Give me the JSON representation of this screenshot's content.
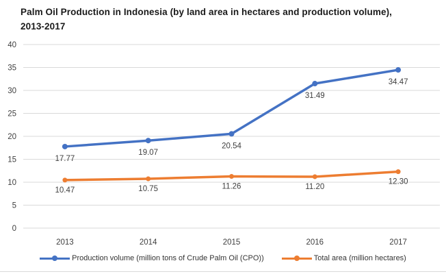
{
  "title": {
    "line1": "Palm Oil Production in Indonesia (by land area in hectares and production volume),",
    "line2": "2013-2017"
  },
  "chart_data": {
    "type": "line",
    "title": "Palm Oil Production in Indonesia (by land area in hectares and production volume), 2013-2017",
    "categories": [
      "2013",
      "2014",
      "2015",
      "2016",
      "2017"
    ],
    "series": [
      {
        "name": "Production volume (million tons of Crude Palm Oil (CPO))",
        "values": [
          17.77,
          19.07,
          20.54,
          31.49,
          34.47
        ],
        "labels": [
          "17.77",
          "19.07",
          "20.54",
          "31.49",
          "34.47"
        ],
        "color": "#4472C4"
      },
      {
        "name": "Total area (million hectares)",
        "values": [
          10.47,
          10.75,
          11.26,
          11.2,
          12.3
        ],
        "labels": [
          "10.47",
          "10.75",
          "11.26",
          "11.20",
          "12.30"
        ],
        "color": "#ED7D31"
      }
    ],
    "xlabel": "",
    "ylabel": "",
    "ylim": [
      0,
      40
    ],
    "yticks": [
      0,
      5,
      10,
      15,
      20,
      25,
      30,
      35,
      40
    ],
    "grid": true,
    "legend_position": "bottom",
    "colors": {
      "grid": "#d9d9d9",
      "tick_text": "#404040",
      "title_text": "#1a1a1a",
      "background": "#ffffff"
    }
  }
}
